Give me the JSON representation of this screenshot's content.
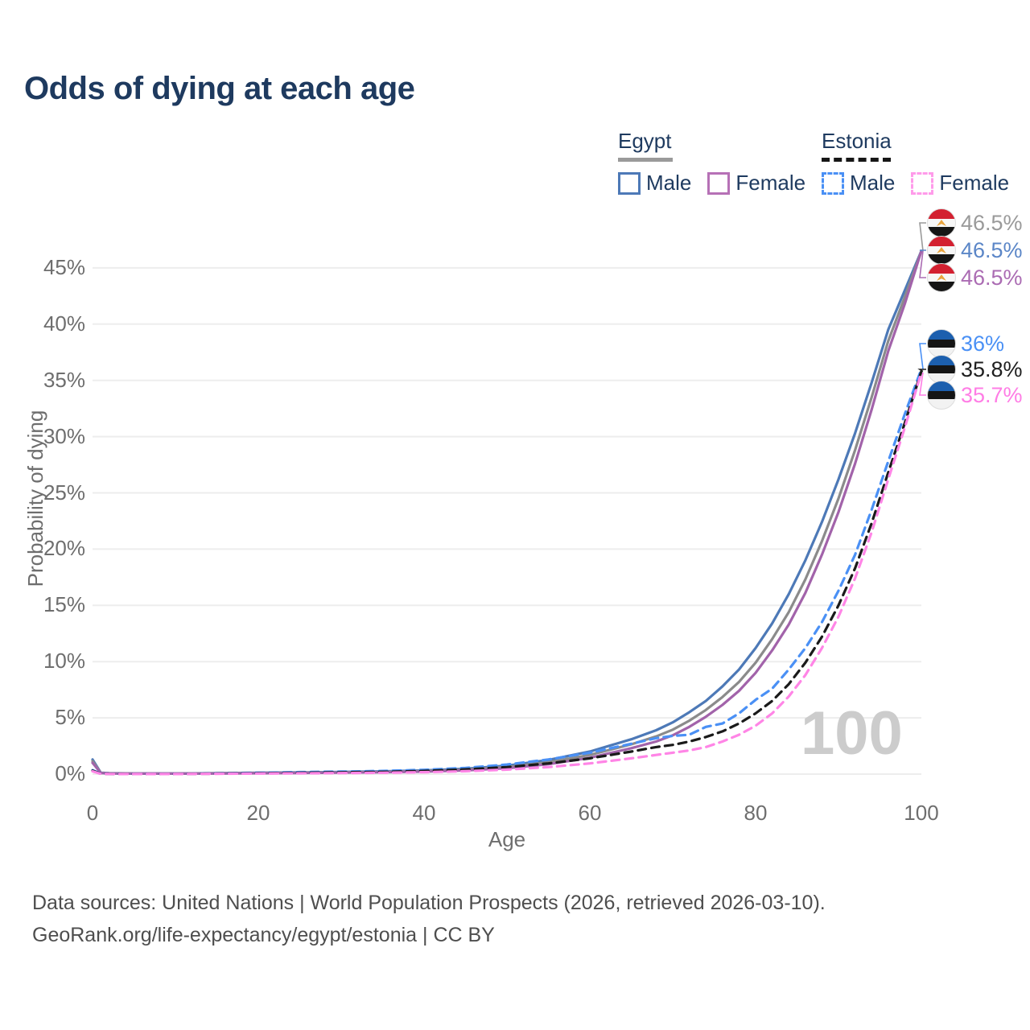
{
  "title": "Odds of dying at each age",
  "legend": {
    "groups": [
      {
        "label": "Egypt",
        "line_style": "solid",
        "underline_color": "#9a9a9a",
        "items": [
          {
            "label": "Male",
            "color": "#4d79b7",
            "dashed": false
          },
          {
            "label": "Female",
            "color": "#b671b6",
            "dashed": false
          }
        ]
      },
      {
        "label": "Estonia",
        "line_style": "dashed",
        "underline_color": "#161616",
        "items": [
          {
            "label": "Male",
            "color": "#4a90f5",
            "dashed": true
          },
          {
            "label": "Female",
            "color": "#ff9bea",
            "dashed": true
          }
        ]
      }
    ]
  },
  "axes": {
    "x": {
      "label": "Age",
      "ticks": [
        0,
        20,
        40,
        60,
        80,
        100
      ]
    },
    "y": {
      "label": "Probability of dying",
      "ticks": [
        "0%",
        "5%",
        "10%",
        "15%",
        "20%",
        "25%",
        "30%",
        "35%",
        "40%",
        "45%"
      ]
    }
  },
  "watermark": "100",
  "footer": {
    "line1": "Data sources: United Nations | World Population Prospects (2026, retrieved 2026-03-10).",
    "line2": "GeoRank.org/life-expectancy/egypt/estonia | CC BY"
  },
  "end_labels": [
    {
      "series": "Egypt both sexes",
      "flag": "egypt",
      "value": "46.5%",
      "color": "#9a9a9a",
      "anchor_pct": 46.5
    },
    {
      "series": "Egypt male",
      "flag": "egypt",
      "value": "46.5%",
      "color": "#5b86c7",
      "anchor_pct": 46.5
    },
    {
      "series": "Egypt female",
      "flag": "egypt",
      "value": "46.5%",
      "color": "#ab6cb3",
      "anchor_pct": 46.5
    },
    {
      "series": "Estonia male",
      "flag": "estonia",
      "value": "36%",
      "color": "#4a90f5",
      "anchor_pct": 36.0
    },
    {
      "series": "Estonia both sexes",
      "flag": "estonia",
      "value": "35.8%",
      "color": "#1f1f1f",
      "anchor_pct": 35.8
    },
    {
      "series": "Estonia female",
      "flag": "estonia",
      "value": "35.7%",
      "color": "#ff7de5",
      "anchor_pct": 35.7
    }
  ],
  "chart_data": {
    "type": "line",
    "title": "Odds of dying at each age",
    "xlabel": "Age",
    "ylabel": "Probability of dying",
    "xlim": [
      0,
      100
    ],
    "ylim_pct": [
      0,
      48
    ],
    "grid": "horizontal",
    "legend_position": "top-right",
    "ages": [
      0,
      1,
      2,
      5,
      10,
      15,
      20,
      25,
      30,
      35,
      40,
      45,
      50,
      55,
      60,
      65,
      68,
      70,
      72,
      74,
      76,
      78,
      80,
      82,
      84,
      86,
      88,
      90,
      92,
      94,
      96,
      98,
      100
    ],
    "series": [
      {
        "name": "Egypt male",
        "country": "Egypt",
        "sex": "male",
        "color": "#4d79b7",
        "dash": "solid",
        "end_value_pct": 46.5,
        "values_pct": [
          1.3,
          0.12,
          0.08,
          0.06,
          0.06,
          0.08,
          0.12,
          0.15,
          0.19,
          0.24,
          0.32,
          0.48,
          0.75,
          1.25,
          2.0,
          3.1,
          3.9,
          4.6,
          5.5,
          6.5,
          7.8,
          9.3,
          11.2,
          13.4,
          16.0,
          19.0,
          22.4,
          26.2,
          30.3,
          34.8,
          39.5,
          43.0,
          46.5
        ]
      },
      {
        "name": "Egypt both sexes",
        "country": "Egypt",
        "sex": "both",
        "color": "#8b8b8b",
        "dash": "solid",
        "end_value_pct": 46.5,
        "values_pct": [
          1.15,
          0.11,
          0.07,
          0.05,
          0.05,
          0.07,
          0.1,
          0.13,
          0.16,
          0.2,
          0.27,
          0.4,
          0.63,
          1.05,
          1.7,
          2.65,
          3.35,
          3.95,
          4.75,
          5.7,
          6.85,
          8.2,
          9.9,
          12.0,
          14.4,
          17.3,
          20.7,
          24.5,
          28.8,
          33.5,
          38.5,
          42.4,
          46.5
        ]
      },
      {
        "name": "Egypt female",
        "country": "Egypt",
        "sex": "female",
        "color": "#a263aa",
        "dash": "solid",
        "end_value_pct": 46.5,
        "values_pct": [
          1.0,
          0.1,
          0.06,
          0.04,
          0.04,
          0.05,
          0.08,
          0.1,
          0.13,
          0.17,
          0.22,
          0.33,
          0.52,
          0.88,
          1.45,
          2.3,
          2.9,
          3.45,
          4.2,
          5.1,
          6.15,
          7.4,
          9.0,
          11.0,
          13.3,
          16.1,
          19.5,
          23.3,
          27.6,
          32.4,
          37.6,
          41.8,
          46.5
        ]
      },
      {
        "name": "Estonia male",
        "country": "Estonia",
        "sex": "male",
        "color": "#4a90f5",
        "dash": "dashed",
        "end_value_pct": 36.0,
        "values_pct": [
          0.35,
          0.04,
          0.03,
          0.02,
          0.02,
          0.06,
          0.12,
          0.18,
          0.22,
          0.28,
          0.38,
          0.55,
          0.85,
          1.3,
          1.9,
          2.7,
          3.2,
          3.4,
          3.5,
          4.2,
          4.5,
          5.4,
          6.6,
          7.6,
          9.3,
          11.2,
          13.5,
          16.3,
          19.5,
          23.5,
          27.8,
          32.0,
          36.0
        ]
      },
      {
        "name": "Estonia both sexes",
        "country": "Estonia",
        "sex": "both",
        "color": "#1a1a1a",
        "dash": "dashed",
        "end_value_pct": 35.8,
        "values_pct": [
          0.3,
          0.03,
          0.02,
          0.015,
          0.015,
          0.04,
          0.08,
          0.12,
          0.16,
          0.2,
          0.28,
          0.42,
          0.62,
          0.95,
          1.4,
          2.0,
          2.4,
          2.6,
          2.9,
          3.3,
          3.8,
          4.5,
          5.4,
          6.5,
          8.0,
          9.9,
          12.2,
          15.0,
          18.3,
          22.3,
          26.8,
          31.2,
          35.8
        ]
      },
      {
        "name": "Estonia female",
        "country": "Estonia",
        "sex": "female",
        "color": "#ff85e6",
        "dash": "dashed",
        "end_value_pct": 35.7,
        "values_pct": [
          0.25,
          0.025,
          0.015,
          0.01,
          0.01,
          0.03,
          0.05,
          0.07,
          0.09,
          0.12,
          0.17,
          0.26,
          0.4,
          0.62,
          0.95,
          1.4,
          1.7,
          1.9,
          2.1,
          2.4,
          2.9,
          3.5,
          4.3,
          5.4,
          6.9,
          8.8,
          11.2,
          14.0,
          17.4,
          21.5,
          26.2,
          30.8,
          35.7
        ]
      }
    ]
  }
}
